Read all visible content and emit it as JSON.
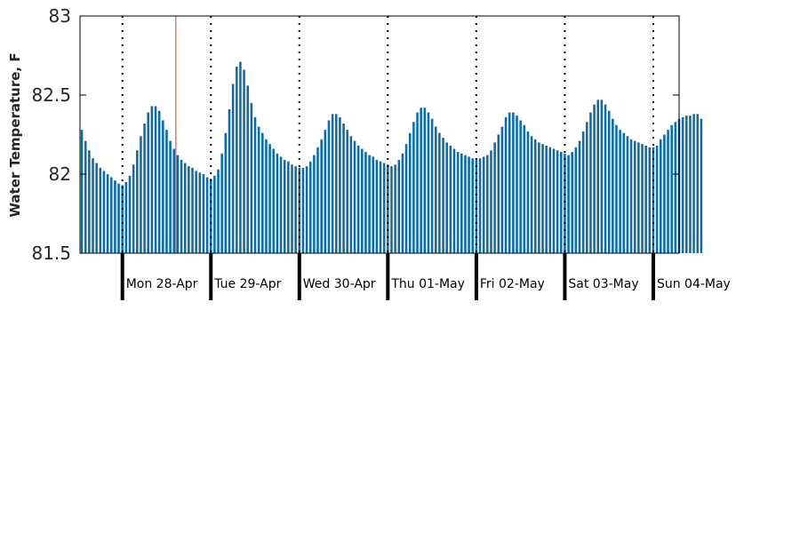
{
  "chart_data": {
    "type": "bar",
    "title": "",
    "xlabel": "",
    "ylabel": "Water Temperature, F",
    "ylim": [
      81.5,
      83
    ],
    "yticks": [
      81.5,
      82,
      82.5,
      83
    ],
    "ytick_labels": [
      "81.5",
      "82",
      "82.5",
      "83"
    ],
    "grid": false,
    "legend": "none",
    "x_unit": "hours since 00:00 Sun 27-Apr",
    "day_boundaries": [
      24,
      48,
      72,
      96,
      120,
      144,
      168
    ],
    "day_labels": [
      "Mon 28-Apr",
      "Tue 29-Apr",
      "Wed 30-Apr",
      "Thu 01-May",
      "Fri 02-May",
      "Sat 03-May",
      "Sun 04-May"
    ],
    "x_start": 13,
    "x_step": 1,
    "current_time_marker": 38.5,
    "values": [
      82.28,
      82.21,
      82.15,
      82.1,
      82.07,
      82.04,
      82.02,
      82.0,
      81.98,
      81.96,
      81.94,
      81.93,
      81.95,
      81.99,
      82.06,
      82.15,
      82.24,
      82.32,
      82.39,
      82.43,
      82.43,
      82.4,
      82.34,
      82.28,
      82.21,
      82.16,
      82.12,
      82.09,
      82.07,
      82.05,
      82.04,
      82.02,
      82.01,
      82.0,
      81.98,
      81.97,
      81.99,
      82.03,
      82.13,
      82.26,
      82.41,
      82.57,
      82.68,
      82.71,
      82.66,
      82.56,
      82.45,
      82.36,
      82.3,
      82.26,
      82.22,
      82.19,
      82.16,
      82.13,
      82.11,
      82.09,
      82.08,
      82.06,
      82.05,
      82.04,
      82.04,
      82.05,
      82.08,
      82.12,
      82.17,
      82.22,
      82.28,
      82.34,
      82.38,
      82.38,
      82.36,
      82.32,
      82.28,
      82.24,
      82.21,
      82.18,
      82.16,
      82.14,
      82.12,
      82.11,
      82.09,
      82.08,
      82.07,
      82.06,
      82.05,
      82.06,
      82.09,
      82.13,
      82.19,
      82.26,
      82.33,
      82.39,
      82.42,
      82.42,
      82.39,
      82.35,
      82.3,
      82.26,
      82.23,
      82.2,
      82.18,
      82.16,
      82.14,
      82.13,
      82.12,
      82.11,
      82.1,
      82.09,
      82.1,
      82.11,
      82.12,
      82.15,
      82.2,
      82.25,
      82.3,
      82.36,
      82.39,
      82.39,
      82.37,
      82.34,
      82.31,
      82.27,
      82.24,
      82.22,
      82.2,
      82.19,
      82.18,
      82.17,
      82.16,
      82.15,
      82.14,
      82.13,
      82.12,
      82.14,
      82.17,
      82.21,
      82.27,
      82.33,
      82.39,
      82.44,
      82.47,
      82.47,
      82.44,
      82.4,
      82.35,
      82.31,
      82.28,
      82.26,
      82.24,
      82.22,
      82.21,
      82.2,
      82.19,
      82.18,
      82.17,
      82.17,
      82.18,
      82.22,
      82.25,
      82.28,
      82.31,
      82.33,
      82.35,
      82.36,
      82.37,
      82.37,
      82.38,
      82.38,
      82.35
    ],
    "colors": {
      "bars": "#0d6ba8",
      "marker": "#e0302b",
      "axes": "#000000"
    }
  }
}
